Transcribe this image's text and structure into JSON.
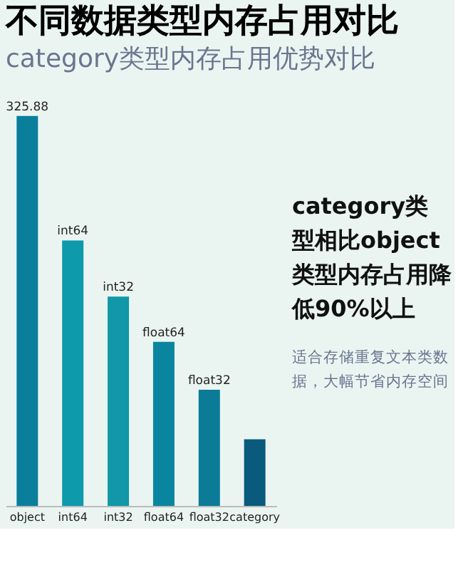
{
  "chart_data": {
    "type": "bar",
    "title": "不同数据类型内存占用对比",
    "subtitle": "category类型内存占用优势对比",
    "categories": [
      "object",
      "int64",
      "int32",
      "float64",
      "float32",
      "category"
    ],
    "values": [
      325.88,
      221.9,
      175,
      137.2,
      97.1,
      55.7
    ],
    "colors": [
      "#0a7f9c",
      "#0d9aab",
      "#1197a8",
      "#0a859f",
      "#0b7b98",
      "#095a7c"
    ],
    "value_labels": [
      "325.88",
      "int64",
      "int32",
      "float64",
      "float32",
      null
    ],
    "tick_labels": "x",
    "annotations": [
      "category类型相比object类型内存占用降低90%以上",
      "适合存储重复文本类数据，大幅节省内存空间"
    ]
  }
}
